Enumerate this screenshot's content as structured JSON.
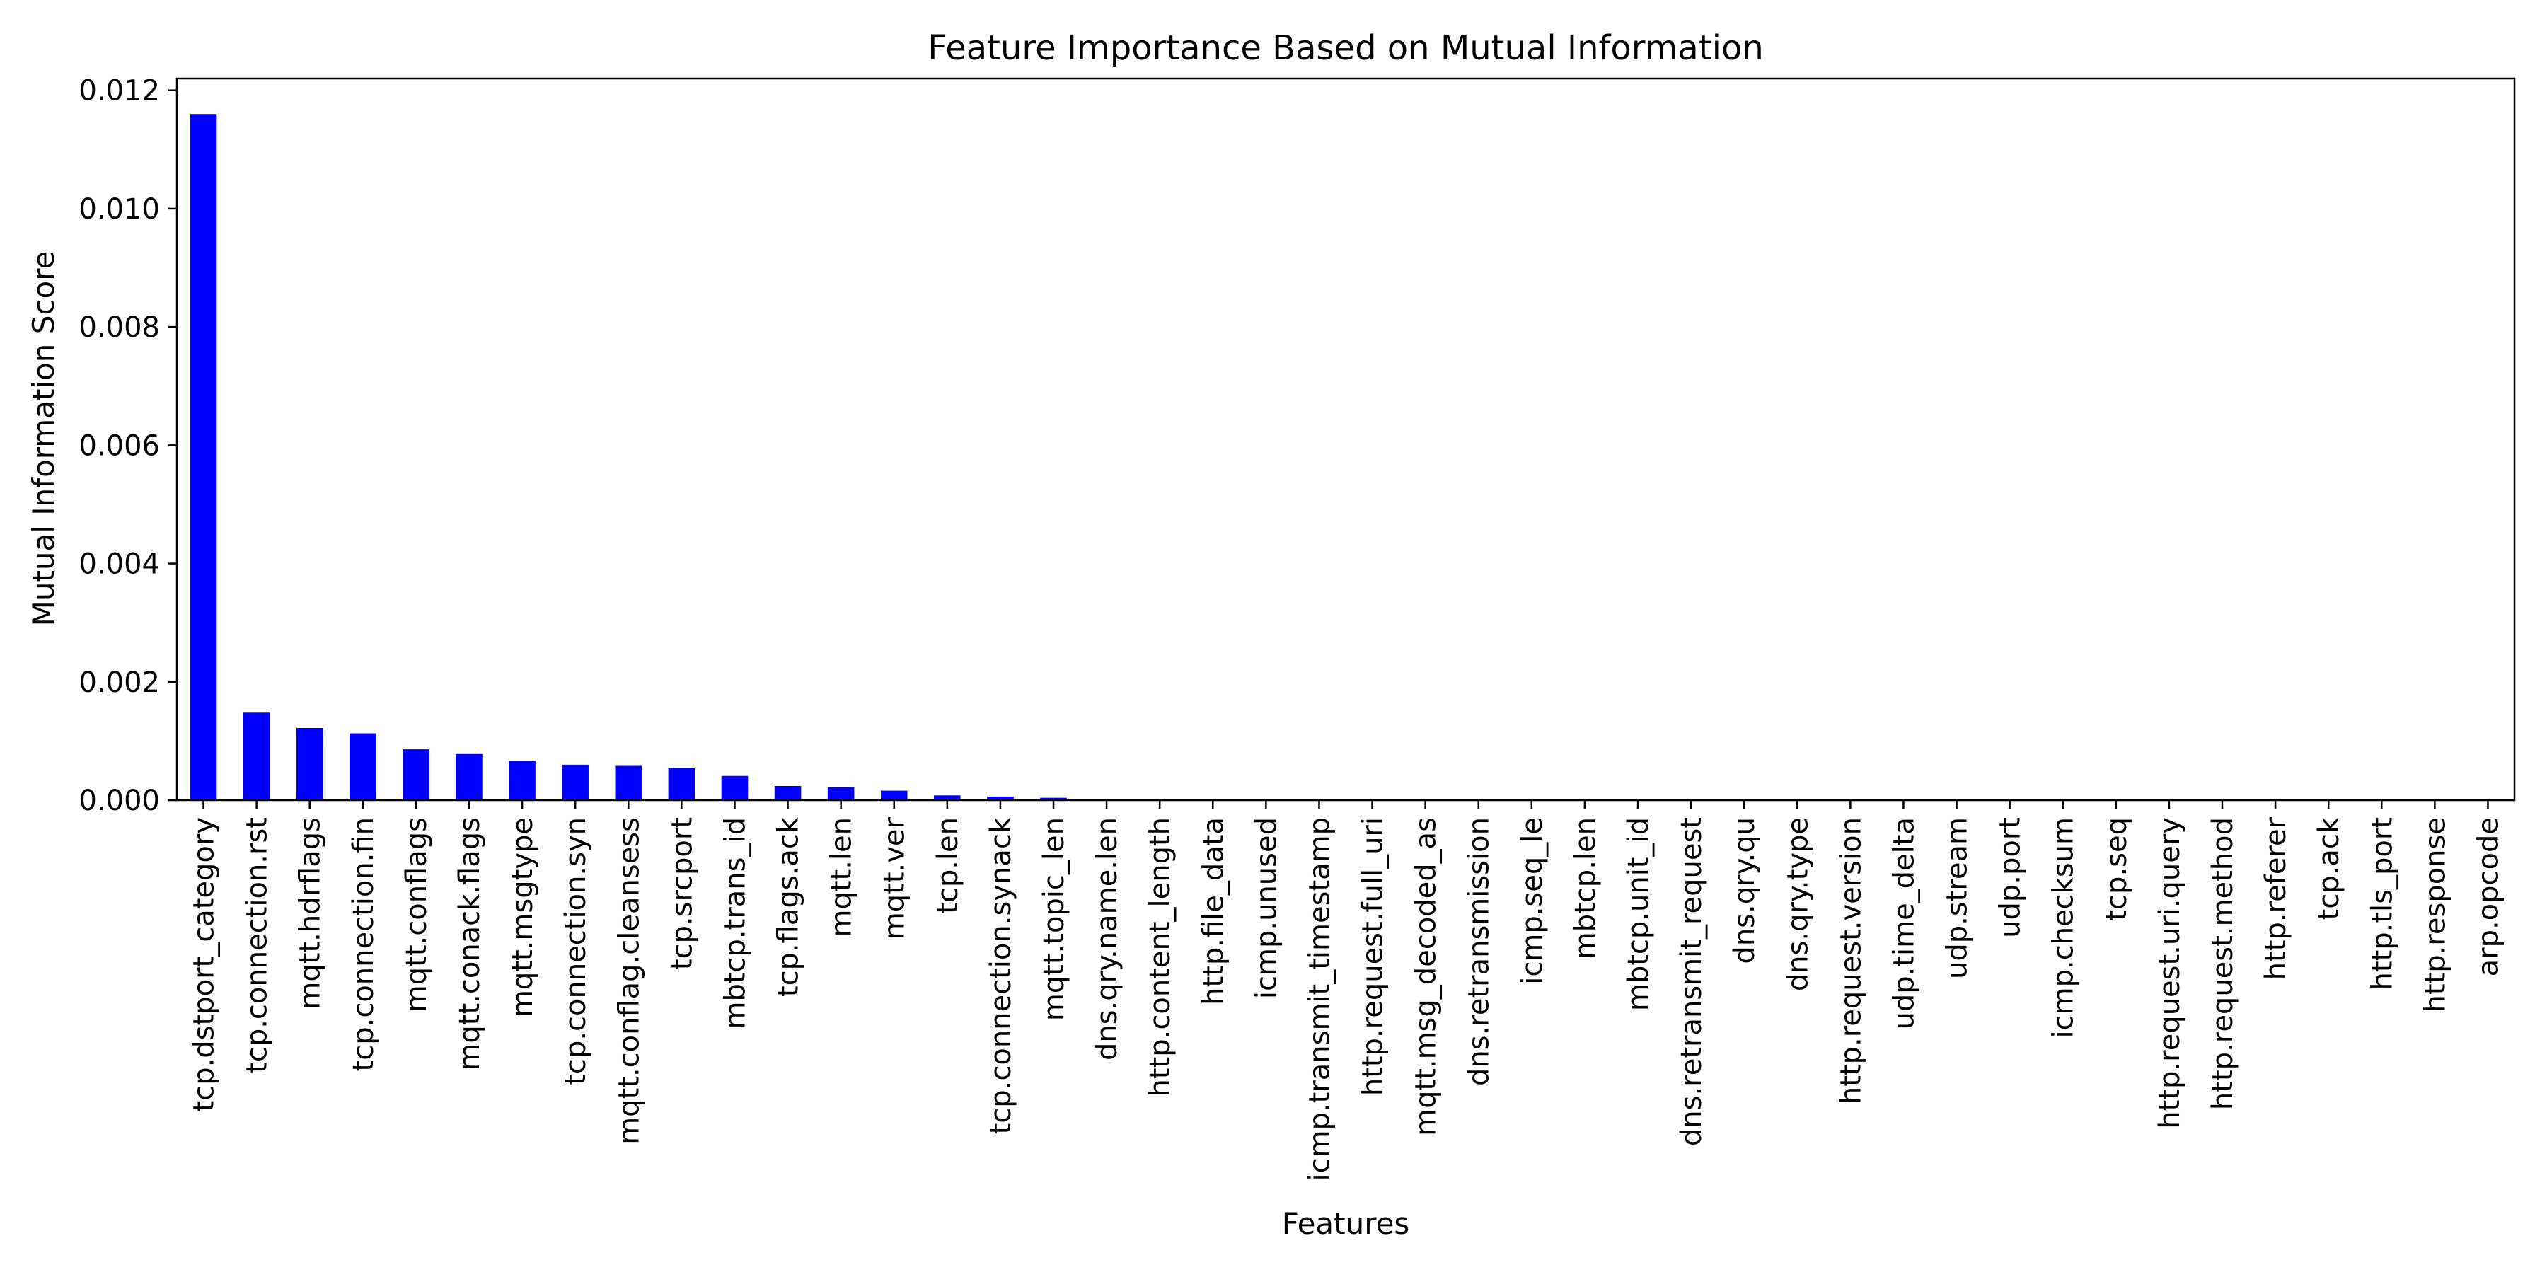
{
  "chart_data": {
    "type": "bar",
    "title": "Feature Importance Based on Mutual Information",
    "xlabel": "Features",
    "ylabel": "Mutual Information Score",
    "ylim": [
      0,
      0.0122
    ],
    "yticks": [
      "0.000",
      "0.002",
      "0.004",
      "0.006",
      "0.008",
      "0.010",
      "0.012"
    ],
    "ytick_values": [
      0,
      0.002,
      0.004,
      0.006,
      0.008,
      0.01,
      0.012
    ],
    "grid": false,
    "legend": "none",
    "bar_color": "#0000ff",
    "categories": [
      "tcp.dstport_category",
      "tcp.connection.rst",
      "mqtt.hdrflags",
      "tcp.connection.fin",
      "mqtt.conflags",
      "mqtt.conack.flags",
      "mqtt.msgtype",
      "tcp.connection.syn",
      "mqtt.conflag.cleansess",
      "tcp.srcport",
      "mbtcp.trans_id",
      "tcp.flags.ack",
      "mqtt.len",
      "mqtt.ver",
      "tcp.len",
      "tcp.connection.synack",
      "mqtt.topic_len",
      "dns.qry.name.len",
      "http.content_length",
      "http.file_data",
      "icmp.unused",
      "icmp.transmit_timestamp",
      "http.request.full_uri",
      "mqtt.msg_decoded_as",
      "dns.retransmission",
      "icmp.seq_le",
      "mbtcp.len",
      "mbtcp.unit_id",
      "dns.retransmit_request",
      "dns.qry.qu",
      "dns.qry.type",
      "http.request.version",
      "udp.time_delta",
      "udp.stream",
      "udp.port",
      "icmp.checksum",
      "tcp.seq",
      "http.request.uri.query",
      "http.request.method",
      "http.referer",
      "tcp.ack",
      "http.tls_port",
      "http.response",
      "arp.opcode"
    ],
    "values": [
      0.0116,
      0.00148,
      0.00122,
      0.00113,
      0.00086,
      0.00078,
      0.00066,
      0.0006,
      0.00058,
      0.00054,
      0.00041,
      0.00024,
      0.00022,
      0.00016,
      8e-05,
      6e-05,
      4e-05,
      0,
      0,
      0,
      0,
      0,
      0,
      0,
      0,
      0,
      0,
      0,
      0,
      0,
      0,
      0,
      0,
      0,
      0,
      0,
      0,
      0,
      0,
      0,
      0,
      0,
      0,
      0
    ]
  }
}
